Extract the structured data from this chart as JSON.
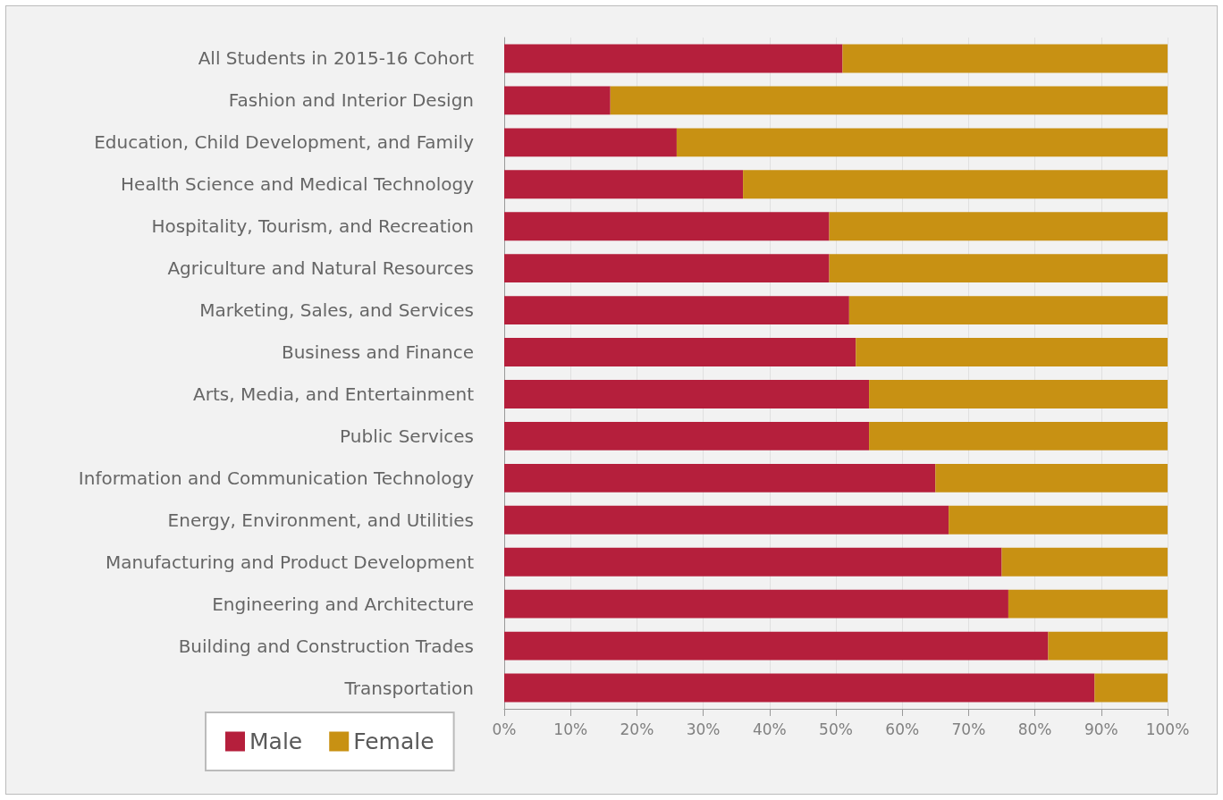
{
  "chart_data": {
    "type": "bar",
    "orientation": "horizontal",
    "stacked": true,
    "categories": [
      "All Students in 2015-16 Cohort",
      "Fashion and Interior Design",
      "Education, Child Development, and Family",
      "Health Science and Medical Technology",
      "Hospitality, Tourism, and Recreation",
      "Agriculture and Natural Resources",
      "Marketing, Sales, and Services",
      "Business and Finance",
      "Arts, Media, and Entertainment",
      "Public Services",
      "Information and Communication Technology",
      "Energy, Environment, and Utilities",
      "Manufacturing and Product Development",
      "Engineering and Architecture",
      "Building and Construction Trades",
      "Transportation"
    ],
    "series": [
      {
        "name": "Male",
        "color": "#b51f3c",
        "values": [
          51,
          16,
          26,
          36,
          49,
          49,
          52,
          53,
          55,
          55,
          65,
          67,
          75,
          76,
          82,
          89
        ]
      },
      {
        "name": "Female",
        "color": "#c89113",
        "values": [
          49,
          84,
          74,
          64,
          51,
          51,
          48,
          47,
          45,
          45,
          35,
          33,
          25,
          24,
          18,
          11
        ]
      }
    ],
    "xlim": [
      0,
      100
    ],
    "xticks": [
      {
        "value": 0,
        "label": "0%"
      },
      {
        "value": 10,
        "label": "10%"
      },
      {
        "value": 20,
        "label": "20%"
      },
      {
        "value": 30,
        "label": "30%"
      },
      {
        "value": 40,
        "label": "40%"
      },
      {
        "value": 50,
        "label": "50%"
      },
      {
        "value": 60,
        "label": "60%"
      },
      {
        "value": 70,
        "label": "70%"
      },
      {
        "value": 80,
        "label": "80%"
      },
      {
        "value": 90,
        "label": "90%"
      },
      {
        "value": 100,
        "label": "100%"
      }
    ],
    "grid": "x",
    "legend": "bottom left"
  }
}
